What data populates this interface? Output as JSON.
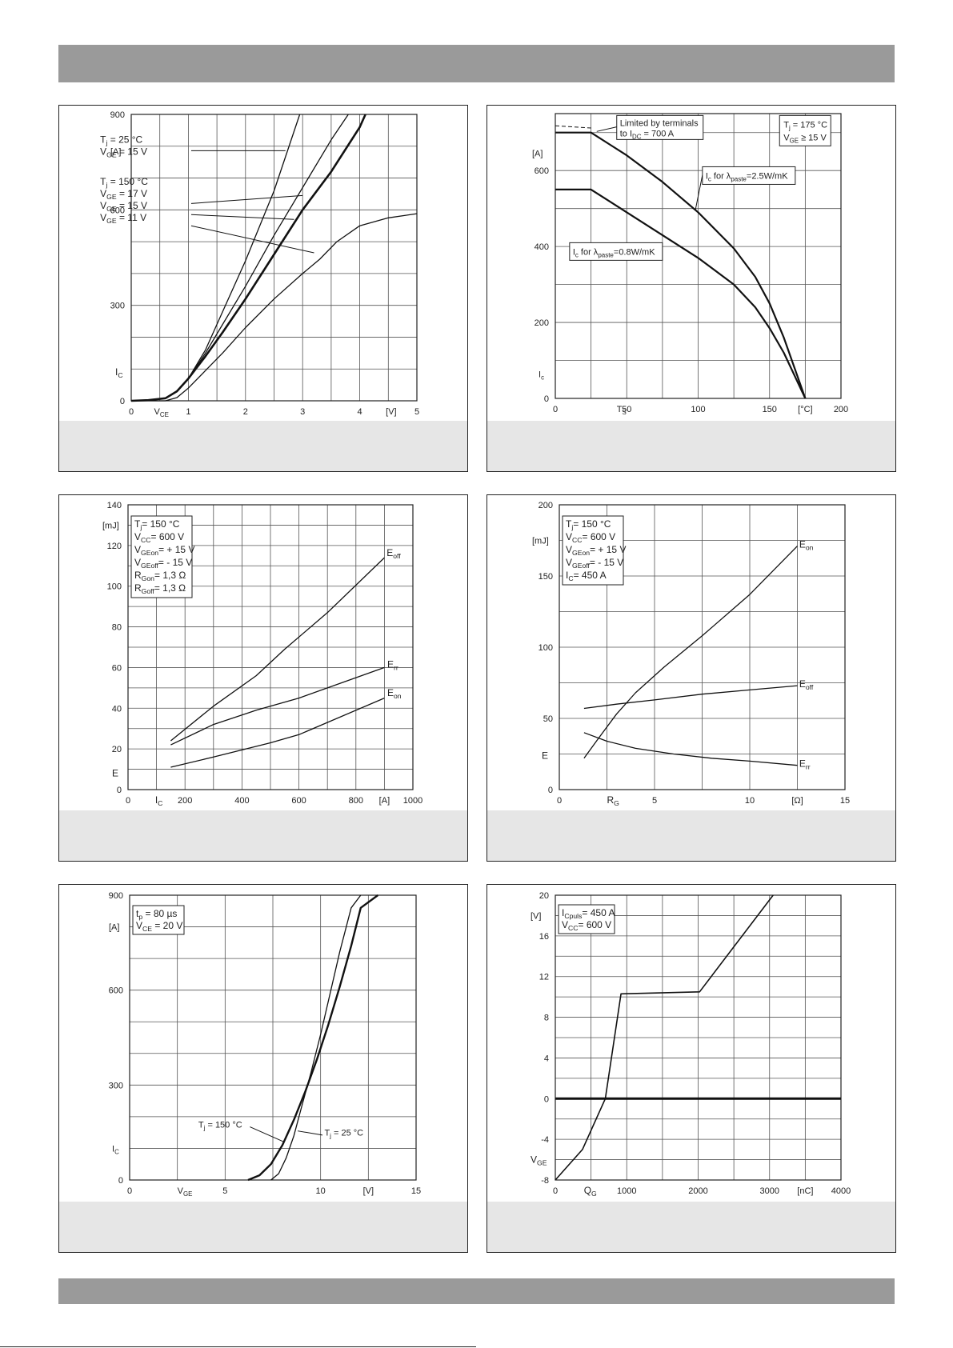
{
  "chart_data": [
    {
      "id": "c1",
      "type": "line",
      "xlim": [
        0,
        5
      ],
      "ylim": [
        0,
        900
      ],
      "xticks": [
        0,
        1,
        2,
        3,
        4,
        5
      ],
      "yticks": [
        0,
        300,
        600,
        900
      ],
      "xgrid": [
        0.5,
        1,
        1.5,
        2,
        2.5,
        3,
        3.5,
        4,
        4.5
      ],
      "ygrid": [
        100,
        200,
        300,
        400,
        500,
        600,
        700,
        800
      ],
      "xlabel": "VCE",
      "xunit": "[V]",
      "ylabel": "IC",
      "yunit": "[A]",
      "series": [
        {
          "w": 1.3,
          "x": [
            0,
            0.3,
            0.6,
            0.8,
            1,
            1.3,
            1.6,
            2,
            2.5,
            2.95
          ],
          "y": [
            0,
            2,
            8,
            30,
            70,
            160,
            280,
            440,
            660,
            900
          ]
        },
        {
          "w": 1.3,
          "x": [
            0,
            0.3,
            0.6,
            0.8,
            1,
            1.3,
            1.6,
            2,
            2.5,
            3,
            3.5,
            3.8
          ],
          "y": [
            0,
            2,
            8,
            30,
            70,
            150,
            240,
            360,
            520,
            670,
            820,
            900
          ]
        },
        {
          "w": 2.6,
          "x": [
            0,
            0.3,
            0.6,
            0.8,
            1,
            1.3,
            1.6,
            2,
            2.5,
            3,
            3.5,
            4,
            4.1
          ],
          "y": [
            0,
            2,
            8,
            30,
            70,
            140,
            215,
            320,
            460,
            600,
            720,
            860,
            900
          ]
        },
        {
          "w": 1.3,
          "x": [
            0,
            0.6,
            0.8,
            1,
            1.3,
            1.6,
            2,
            2.5,
            3,
            3.3,
            3.6,
            4,
            4.5,
            5
          ],
          "y": [
            0,
            0,
            10,
            40,
            95,
            150,
            230,
            320,
            400,
            445,
            500,
            550,
            575,
            588
          ]
        }
      ],
      "annotations": [
        {
          "lines": [
            [
              "T",
              "j",
              " = 25 °C"
            ],
            [
              "V",
              "GE",
              " = 15 V"
            ]
          ],
          "ax": 0.1,
          "ay": 780,
          "leader": [
            [
              1.05,
              786
            ],
            [
              2.7,
              786
            ]
          ]
        },
        {
          "lines": [
            [
              "T",
              "j",
              " = 150 °C"
            ],
            [
              "V",
              "GE",
              " = 17 V"
            ],
            [
              "V",
              "GE",
              " = 15 V"
            ],
            [
              "V",
              "GE",
              " = 11 V"
            ]
          ],
          "ax": 0.1,
          "ay": 648,
          "leaders": [
            [
              [
                1.05,
                620
              ],
              [
                3.0,
                645
              ]
            ],
            [
              [
                1.05,
                585
              ],
              [
                2.85,
                570
              ]
            ],
            [
              [
                1.05,
                550
              ],
              [
                3.2,
                465
              ]
            ]
          ]
        }
      ]
    },
    {
      "id": "c2",
      "type": "line",
      "xlim": [
        0,
        200
      ],
      "ylim": [
        0,
        750
      ],
      "xticks": [
        0,
        50,
        100,
        150,
        200
      ],
      "yticks": [
        0,
        200,
        400,
        600
      ],
      "xgrid": [
        25,
        50,
        75,
        100,
        125,
        150,
        175
      ],
      "ygrid": [
        100,
        200,
        300,
        400,
        500,
        600,
        700
      ],
      "xlabel": "TS",
      "xunit": "[°C]",
      "ylabel": "Ic",
      "yunit": "[A]",
      "series": [
        {
          "w": 2.2,
          "x": [
            0,
            25,
            50,
            75,
            100,
            125,
            140,
            150,
            160,
            175
          ],
          "y": [
            700,
            700,
            640,
            570,
            490,
            395,
            320,
            250,
            160,
            0
          ]
        },
        {
          "w": 2.2,
          "x": [
            0,
            25,
            50,
            75,
            100,
            125,
            140,
            150,
            160,
            175
          ],
          "y": [
            550,
            550,
            490,
            430,
            370,
            300,
            240,
            185,
            120,
            0
          ]
        }
      ],
      "dashed": {
        "x": [
          0,
          25
        ],
        "y": [
          718,
          712
        ]
      },
      "annotations": [
        {
          "text1": "Limited by terminals",
          "text2": "to I",
          "sub": "DC",
          "text3": " = 700 A"
        },
        {
          "tj": "T",
          "tjsub": "j",
          "tjval": " = 175 °C",
          "vge": "V",
          "vgesub": "GE",
          "vgeval": " ≥ 15 V"
        },
        {
          "main": "I",
          "sub1": "c",
          "mid": " for λ",
          "sub2": "paste",
          "tail": "=2.5W/mK"
        },
        {
          "main": "I",
          "sub1": "c",
          "mid": " for λ",
          "sub2": "paste",
          "tail": "=0.8W/mK"
        }
      ]
    },
    {
      "id": "c3",
      "type": "line",
      "xlim": [
        0,
        1000
      ],
      "ylim": [
        0,
        140
      ],
      "xticks": [
        0,
        200,
        400,
        600,
        800,
        1000
      ],
      "yticks": [
        0,
        20,
        40,
        60,
        80,
        100,
        120,
        140
      ],
      "xgrid": [
        100,
        200,
        300,
        400,
        500,
        600,
        700,
        800,
        900
      ],
      "ygrid": [
        10,
        20,
        30,
        40,
        50,
        60,
        70,
        80,
        90,
        100,
        110,
        120,
        130
      ],
      "xlabel": "IC",
      "xunit": "[A]",
      "ylabel": "E",
      "yunit": "[mJ]",
      "series": [
        {
          "name": "Eoff",
          "w": 1.3,
          "x": [
            150,
            300,
            450,
            550,
            700,
            900
          ],
          "y": [
            24,
            41,
            56,
            69,
            87,
            114
          ]
        },
        {
          "name": "Err",
          "w": 1.3,
          "x": [
            150,
            300,
            450,
            600,
            900
          ],
          "y": [
            22,
            32,
            39,
            45,
            60
          ]
        },
        {
          "name": "Eon",
          "w": 1.3,
          "x": [
            150,
            300,
            500,
            600,
            900
          ],
          "y": [
            11,
            16,
            23,
            27,
            45
          ]
        }
      ],
      "params": [
        [
          "T",
          "j",
          "=  150 °C"
        ],
        [
          "V",
          "CC",
          "= 600 V"
        ],
        [
          "V",
          "GEon",
          "= + 15 V"
        ],
        [
          "V",
          "GEoff",
          "= - 15 V"
        ],
        [
          "R",
          "Gon",
          "= 1,3 Ω"
        ],
        [
          "R",
          "Goff",
          "= 1,3 Ω"
        ]
      ]
    },
    {
      "id": "c4",
      "type": "line",
      "xlim": [
        0,
        15
      ],
      "ylim": [
        0,
        200
      ],
      "xticks": [
        0,
        5,
        10,
        15
      ],
      "yticks": [
        0,
        50,
        100,
        150,
        200
      ],
      "xgrid": [
        2.5,
        5,
        7.5,
        10,
        12.5
      ],
      "ygrid": [
        25,
        50,
        75,
        100,
        125,
        150,
        175
      ],
      "xlabel": "RG",
      "xunit": "[Ω]",
      "ylabel": "E",
      "yunit": "[mJ]",
      "series": [
        {
          "name": "Eon",
          "w": 1.3,
          "x": [
            1.3,
            2,
            3,
            4,
            5.5,
            7.5,
            10,
            12.5
          ],
          "y": [
            22,
            35,
            53,
            68,
            86,
            108,
            137,
            171
          ]
        },
        {
          "name": "Eoff",
          "w": 1.3,
          "x": [
            1.3,
            3,
            5,
            7.5,
            10,
            12.5
          ],
          "y": [
            57,
            60,
            63,
            67,
            70,
            73
          ]
        },
        {
          "name": "Err",
          "w": 1.3,
          "x": [
            1.3,
            2.5,
            4,
            6,
            8,
            10,
            12.5
          ],
          "y": [
            40,
            34,
            29,
            25,
            22,
            20,
            17
          ]
        }
      ],
      "params": [
        [
          "T",
          "j",
          "=  150 °C"
        ],
        [
          "V",
          "CC",
          "= 600 V"
        ],
        [
          "V",
          "GEon",
          "= + 15 V"
        ],
        [
          "V",
          "GEoff",
          "= - 15 V"
        ],
        [
          "I",
          "C",
          "=  450 A"
        ]
      ]
    },
    {
      "id": "c5",
      "type": "line",
      "xlim": [
        0,
        15
      ],
      "ylim": [
        0,
        900
      ],
      "xticks": [
        0,
        5,
        10,
        15
      ],
      "yticks": [
        0,
        300,
        600,
        900
      ],
      "xgrid": [
        2.5,
        5,
        7.5,
        10,
        12.5
      ],
      "ygrid": [
        100,
        200,
        300,
        400,
        500,
        600,
        700,
        800
      ],
      "xlabel": "VGE",
      "xunit": "[V]",
      "ylabel": "IC",
      "yunit": "[A]",
      "series": [
        {
          "w": 2.4,
          "x": [
            6.2,
            6.8,
            7.4,
            8,
            8.6,
            9.2,
            9.8,
            10.4,
            11,
            11.6,
            12.1,
            13
          ],
          "y": [
            0,
            15,
            50,
            110,
            190,
            280,
            380,
            490,
            610,
            740,
            860,
            900
          ]
        },
        {
          "w": 1.3,
          "x": [
            7.4,
            7.8,
            8.2,
            8.6,
            9,
            9.5,
            10,
            10.5,
            11,
            11.6,
            12.1
          ],
          "y": [
            0,
            20,
            70,
            140,
            230,
            340,
            460,
            590,
            720,
            860,
            900
          ]
        }
      ],
      "params": [
        [
          "t",
          "p",
          " = 80 µs"
        ],
        [
          "V",
          "CE",
          " = 20 V"
        ]
      ],
      "labels": [
        [
          "T",
          "j",
          " = 150 °C"
        ],
        [
          "T",
          "j",
          " = 25 °C"
        ]
      ]
    },
    {
      "id": "c6",
      "type": "line",
      "xlim": [
        0,
        4000
      ],
      "ylim": [
        -8,
        20
      ],
      "xticks": [
        0,
        1000,
        2000,
        3000,
        4000
      ],
      "yticks": [
        -8,
        -4,
        0,
        4,
        8,
        12,
        16,
        20
      ],
      "xgrid": [
        500,
        1000,
        1500,
        2000,
        2500,
        3000,
        3500
      ],
      "ygrid": [
        -6,
        -4,
        -2,
        0,
        2,
        4,
        6,
        8,
        10,
        12,
        14,
        16,
        18
      ],
      "xlabel": "QG",
      "xunit": "[nC]",
      "ylabel": "VGE",
      "yunit": "[V]",
      "series": [
        {
          "w": 1.6,
          "x": [
            0,
            380,
            700,
            920,
            2020,
            3050
          ],
          "y": [
            -8,
            -5,
            0,
            10.3,
            10.5,
            20
          ]
        },
        {
          "w": 3,
          "x": [
            0,
            4000
          ],
          "y": [
            0,
            0
          ]
        }
      ],
      "params": [
        [
          "I",
          "Cpuls",
          "= 450 A"
        ],
        [
          "V",
          "CC",
          "= 600 V"
        ]
      ]
    }
  ]
}
